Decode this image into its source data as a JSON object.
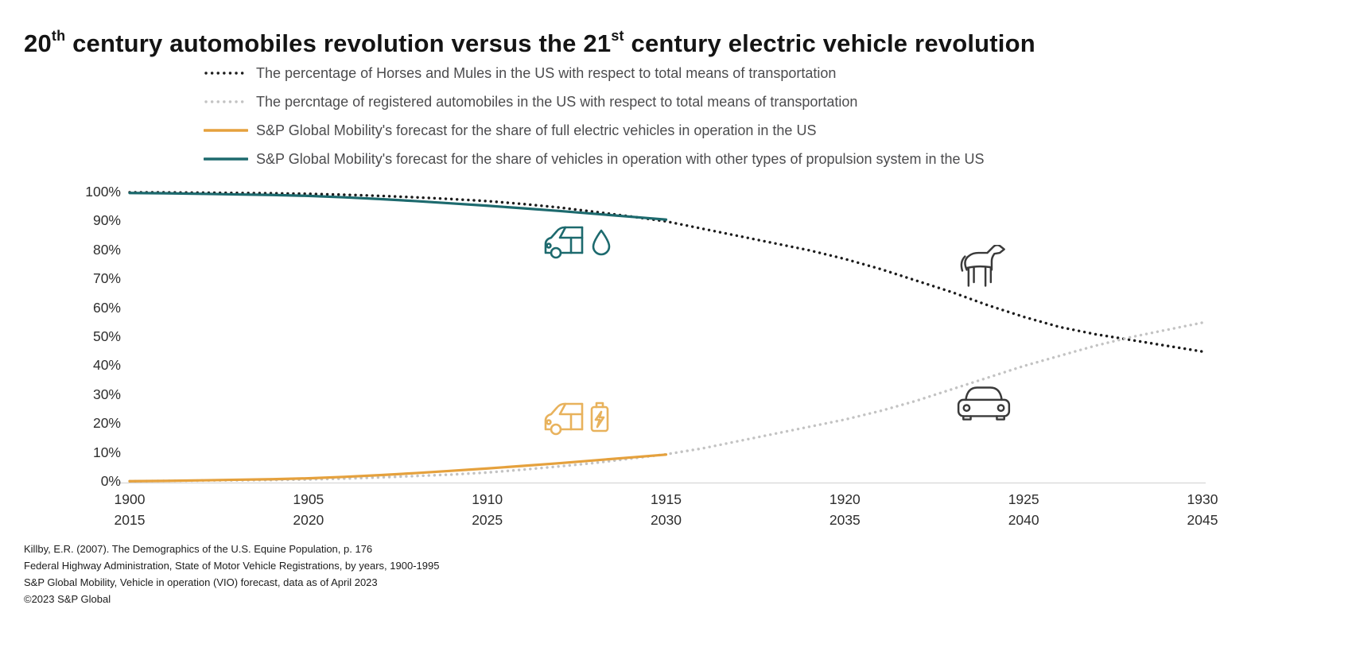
{
  "title": {
    "p1": "20",
    "sup1": "th",
    "p2": " century automobiles revolution versus the 21",
    "sup2": "st",
    "p3": " century electric vehicle revolution"
  },
  "legend": {
    "items": [
      {
        "label": "The percentage of Horses and Mules in the US with respect to total means of transportation",
        "style": "dotted",
        "color": "#1c1c1c"
      },
      {
        "label": "The percntage of registered automobiles in the US with respect to total means of transportation",
        "style": "dotted",
        "color": "#c3c3c3"
      },
      {
        "label": "S&P Global Mobility's forecast for the share of full electric vehicles in operation in the US",
        "style": "solid",
        "color": "#e5a13d"
      },
      {
        "label": "S&P Global Mobility's forecast for the share of vehicles in operation with other types of propulsion system in the US",
        "style": "solid",
        "color": "#1d6a6e"
      }
    ]
  },
  "icons": {
    "fuel_car": "fuel-car-icon",
    "battery_car": "battery-ev-car-icon",
    "horse": "horse-icon",
    "car_front": "car-icon",
    "fuel_car_color": "#1d6a6e",
    "battery_car_color": "#e8b25c",
    "horse_color": "#3a3a3a",
    "car_front_color": "#3a3a3a"
  },
  "chart_data": {
    "type": "line",
    "title": "20th century automobiles revolution versus the 21st century electric vehicle revolution",
    "grid": false,
    "legend_position": "top",
    "x_axis": {
      "top_labels": [
        "1900",
        "1905",
        "1910",
        "1915",
        "1920",
        "1925",
        "1930"
      ],
      "bottom_labels": [
        "2015",
        "2020",
        "2025",
        "2030",
        "2035",
        "2040",
        "2045"
      ],
      "range": [
        1900,
        1930
      ]
    },
    "y_axis": {
      "tick_labels": [
        "0%",
        "10%",
        "20%",
        "30%",
        "40%",
        "50%",
        "60%",
        "70%",
        "80%",
        "90%",
        "100%"
      ],
      "tick_values": [
        0,
        10,
        20,
        30,
        40,
        50,
        60,
        70,
        80,
        90,
        100
      ],
      "range": [
        0,
        100
      ]
    },
    "series": [
      {
        "name": "horses-and-mules-share",
        "style": "dotted",
        "color": "#1c1c1c",
        "axis": "top",
        "x": [
          1900,
          1901,
          1902,
          1903,
          1904,
          1905,
          1906,
          1907,
          1908,
          1909,
          1910,
          1911,
          1912,
          1913,
          1914,
          1915,
          1916,
          1917,
          1918,
          1919,
          1920,
          1921,
          1922,
          1923,
          1924,
          1925,
          1926,
          1927,
          1928,
          1929,
          1930
        ],
        "y": [
          100,
          100,
          99.9,
          99.8,
          99.7,
          99.5,
          99.2,
          98.8,
          98.3,
          97.7,
          97,
          96,
          94.8,
          93.3,
          91.7,
          90,
          87.5,
          85,
          82.5,
          80,
          77,
          73.5,
          69.5,
          65.5,
          61,
          57,
          53.5,
          51,
          49,
          47,
          45
        ]
      },
      {
        "name": "registered-automobiles-share",
        "style": "dotted",
        "color": "#c3c3c3",
        "axis": "top",
        "x": [
          1900,
          1901,
          1902,
          1903,
          1904,
          1905,
          1906,
          1907,
          1908,
          1909,
          1910,
          1911,
          1912,
          1913,
          1914,
          1915,
          1916,
          1917,
          1918,
          1919,
          1920,
          1921,
          1922,
          1923,
          1924,
          1925,
          1926,
          1927,
          1928,
          1929,
          1930
        ],
        "y": [
          0.2,
          0.3,
          0.4,
          0.5,
          0.6,
          0.8,
          1.1,
          1.5,
          2,
          2.5,
          3.2,
          4.2,
          5.3,
          6.5,
          8,
          9.5,
          11.5,
          14,
          16.5,
          19,
          21.5,
          24.5,
          28,
          32,
          36,
          40,
          43.5,
          47,
          50,
          52.5,
          55
        ]
      },
      {
        "name": "ev-forecast-share",
        "style": "solid",
        "color": "#e5a13d",
        "axis": "bottom",
        "x": [
          2015,
          2016,
          2017,
          2018,
          2019,
          2020,
          2021,
          2022,
          2023,
          2024,
          2025,
          2026,
          2027,
          2028,
          2029,
          2030
        ],
        "y": [
          0.2,
          0.3,
          0.5,
          0.7,
          0.9,
          1.2,
          1.7,
          2.3,
          3.0,
          3.8,
          4.6,
          5.5,
          6.4,
          7.4,
          8.4,
          9.4
        ]
      },
      {
        "name": "other-propulsion-forecast-share",
        "style": "solid",
        "color": "#1d6a6e",
        "axis": "bottom",
        "x": [
          2015,
          2016,
          2017,
          2018,
          2019,
          2020,
          2021,
          2022,
          2023,
          2024,
          2025,
          2026,
          2027,
          2028,
          2029,
          2030
        ],
        "y": [
          99.8,
          99.7,
          99.5,
          99.3,
          99.1,
          98.8,
          98.3,
          97.7,
          97.0,
          96.2,
          95.4,
          94.5,
          93.6,
          92.6,
          91.6,
          90.6
        ]
      }
    ]
  },
  "footnotes": [
    "Killby, E.R. (2007). The Demographics of the U.S. Equine Population, p. 176",
    "Federal Highway Administration, State of Motor Vehicle Registrations, by years, 1900-1995",
    "S&P Global Mobility, Vehicle in operation (VIO) forecast, data as of April 2023",
    "©2023 S&P Global"
  ]
}
